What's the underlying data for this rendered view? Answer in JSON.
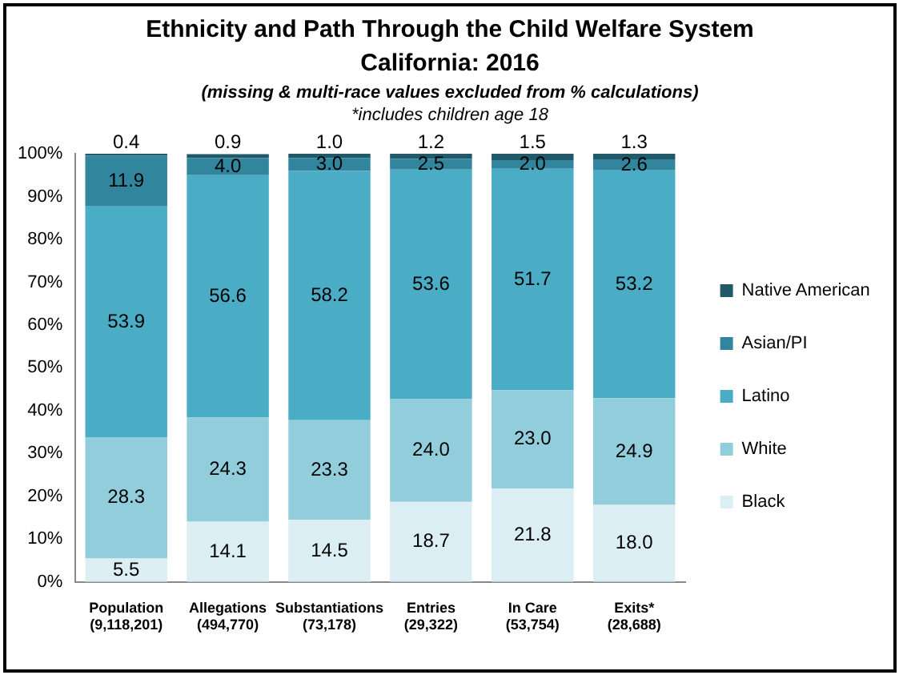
{
  "chart_data": {
    "type": "bar",
    "stacked": true,
    "title": "Ethnicity and Path Through the Child Welfare System\nCalifornia: 2016",
    "subtitle": "(missing & multi-race  values excluded from % calculations)",
    "annotations": [
      "*includes children age 18"
    ],
    "categories": [
      "Population\n(9,118,201)",
      "Allegations\n(494,770)",
      "Substantiations\n(73,178)",
      "Entries\n(29,322)",
      "In Care\n(53,754)",
      "Exits*\n(28,688)"
    ],
    "series": [
      {
        "name": "Black",
        "color": "#daeef3",
        "values": [
          5.5,
          14.1,
          14.5,
          18.7,
          21.8,
          18.0
        ],
        "value_labels": [
          "5.5",
          "14.1",
          "14.5",
          "18.7",
          "21.8",
          "18.0"
        ]
      },
      {
        "name": "White",
        "color": "#92cddc",
        "values": [
          28.3,
          24.3,
          23.3,
          24.0,
          23.0,
          24.9
        ],
        "value_labels": [
          "28.3",
          "24.3",
          "23.3",
          "24.0",
          "23.0",
          "24.9"
        ]
      },
      {
        "name": "Latino",
        "color": "#4bacc6",
        "values": [
          53.9,
          56.6,
          58.2,
          53.6,
          51.7,
          53.2
        ],
        "value_labels": [
          "53.9",
          "56.6",
          "58.2",
          "53.6",
          "51.7",
          "53.2"
        ]
      },
      {
        "name": "Asian/PI",
        "color": "#31859c",
        "values": [
          11.9,
          4.0,
          3.0,
          2.5,
          2.0,
          2.6
        ],
        "value_labels": [
          "11.9",
          "4.0",
          "3.0",
          "2.5",
          "2.0",
          "2.6"
        ]
      },
      {
        "name": "Native American",
        "color": "#215968",
        "values": [
          0.4,
          0.9,
          1.0,
          1.2,
          1.5,
          1.3
        ],
        "value_labels": [
          "0.4",
          "0.9",
          "1.0",
          "1.2",
          "1.5",
          "1.3"
        ]
      }
    ],
    "ylim": [
      0,
      100
    ],
    "yticks": [
      {
        "value": 0,
        "label": "0%"
      },
      {
        "value": 10,
        "label": "10%"
      },
      {
        "value": 20,
        "label": "20%"
      },
      {
        "value": 30,
        "label": "30%"
      },
      {
        "value": 40,
        "label": "40%"
      },
      {
        "value": 50,
        "label": "50%"
      },
      {
        "value": 60,
        "label": "60%"
      },
      {
        "value": 70,
        "label": "70%"
      },
      {
        "value": 80,
        "label": "80%"
      },
      {
        "value": 90,
        "label": "90%"
      },
      {
        "value": 100,
        "label": "100%"
      }
    ],
    "grid": false,
    "legend": "right"
  }
}
